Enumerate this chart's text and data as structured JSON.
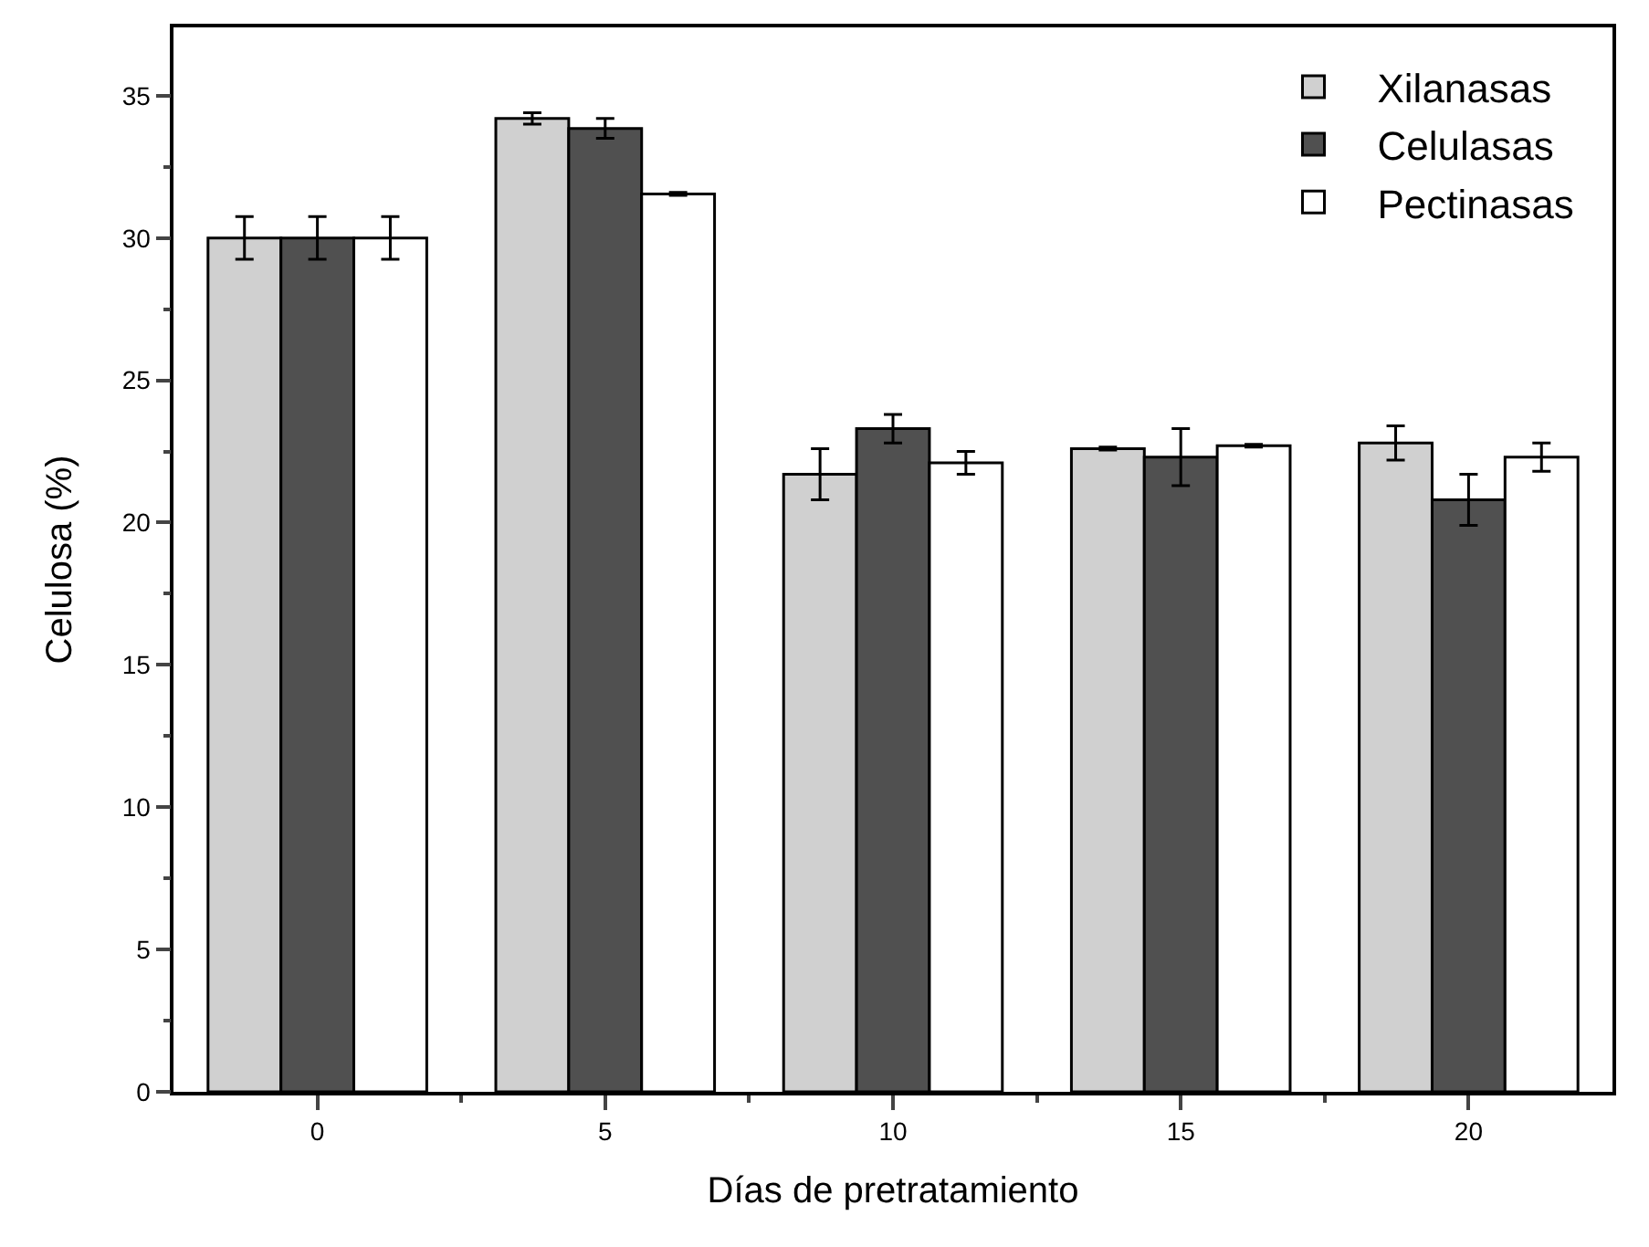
{
  "chart_data": {
    "type": "bar",
    "xlabel": "Días de pretratamiento",
    "ylabel": "Celulosa (%)",
    "categories": [
      "0",
      "5",
      "10",
      "15",
      "20"
    ],
    "series": [
      {
        "name": "Xilanasas",
        "color": "#d0d0d0",
        "values": [
          30,
          34.2,
          21.7,
          22.6,
          22.8
        ],
        "errors": [
          0.75,
          0.2,
          0.9,
          0.05,
          0.6
        ]
      },
      {
        "name": "Celulasas",
        "color": "#505050",
        "values": [
          30,
          33.85,
          23.3,
          22.3,
          20.8
        ],
        "errors": [
          0.75,
          0.35,
          0.5,
          1.0,
          0.9
        ]
      },
      {
        "name": "Pectinasas",
        "color": "#ffffff",
        "values": [
          30,
          31.55,
          22.1,
          22.7,
          22.3
        ],
        "errors": [
          0.75,
          0.05,
          0.4,
          0.05,
          0.5
        ]
      }
    ],
    "ylim": [
      0,
      37.4
    ],
    "yticks": [
      0,
      5,
      10,
      15,
      20,
      25,
      30,
      35
    ],
    "grid": false,
    "legend": "top right"
  }
}
